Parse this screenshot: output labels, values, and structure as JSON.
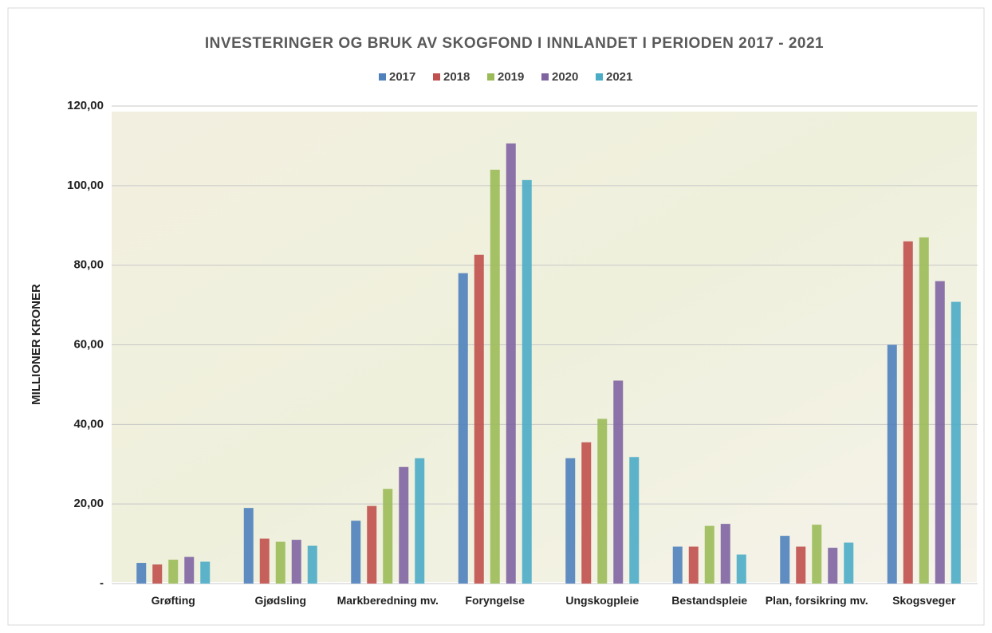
{
  "chart_data": {
    "type": "bar",
    "title": "INVESTERINGER OG BRUK AV SKOGFOND  I INNLANDET I PERIODEN 2017 - 2021",
    "y_label": "MILLIONER KRONER",
    "categories": [
      "Grøfting",
      "Gjødsling",
      "Markberedning mv.",
      "Foryngelse",
      "Ungskogpleie",
      "Bestandspleie",
      "Plan, forsikring mv.",
      "Skogsveger"
    ],
    "series": [
      {
        "name": "2017",
        "color": "#4f81bd",
        "values": [
          5.2,
          19,
          15.8,
          78,
          31.5,
          9.3,
          12,
          60
        ]
      },
      {
        "name": "2018",
        "color": "#c0504d",
        "values": [
          4.8,
          11.3,
          19.5,
          82.6,
          35.5,
          9.3,
          9.3,
          86
        ]
      },
      {
        "name": "2019",
        "color": "#9bbb59",
        "values": [
          6,
          10.5,
          23.8,
          104,
          41.4,
          14.5,
          14.8,
          87
        ]
      },
      {
        "name": "2020",
        "color": "#8064a2",
        "values": [
          6.7,
          11,
          29.3,
          110.6,
          51,
          15,
          9,
          76
        ]
      },
      {
        "name": "2021",
        "color": "#4bacc6",
        "values": [
          5.5,
          9.5,
          31.5,
          101.4,
          31.8,
          7.3,
          10.3,
          70.8
        ]
      }
    ],
    "ylim": [
      0,
      120
    ],
    "yticks": [
      {
        "value": 0,
        "label": "-"
      },
      {
        "value": 20,
        "label": "20,00"
      },
      {
        "value": 40,
        "label": "40,00"
      },
      {
        "value": 60,
        "label": "60,00"
      },
      {
        "value": 80,
        "label": "80,00"
      },
      {
        "value": 100,
        "label": "100,00"
      },
      {
        "value": 120,
        "label": "120,00"
      }
    ],
    "grid": true,
    "legend": "top"
  }
}
